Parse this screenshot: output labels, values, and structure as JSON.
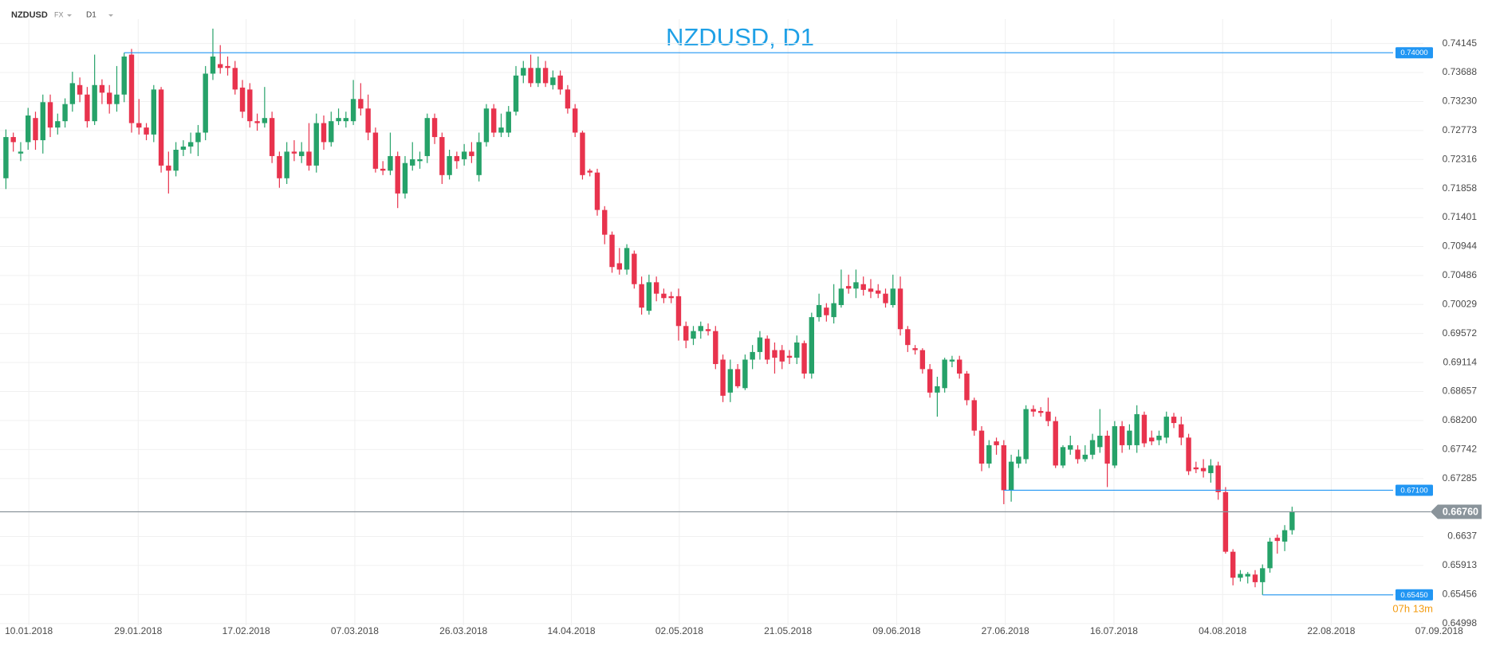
{
  "header": {
    "symbol": "NZDUSD",
    "market": "FX",
    "timeframe": "D1"
  },
  "chart_data": {
    "type": "candlestick",
    "title": "NZDUSD, D1",
    "up_color": "#26a269",
    "down_color": "#e8334d",
    "grid": true,
    "open": [
      0.7202,
      0.7267,
      0.7241,
      0.7259,
      0.7297,
      0.7262,
      0.7322,
      0.7282,
      0.7292,
      0.7319,
      0.7349,
      0.7334,
      0.7292,
      0.7349,
      0.7337,
      0.7319,
      0.7334,
      0.7397,
      0.7289,
      0.7282,
      0.7271,
      0.7342,
      0.7222,
      0.7214,
      0.7247,
      0.7252,
      0.7259,
      0.7274,
      0.7367,
      0.7382,
      0.7379,
      0.7376,
      0.7345,
      0.7342,
      0.7292,
      0.7289,
      0.7297,
      0.7237,
      0.7202,
      0.7244,
      0.7237,
      0.7244,
      0.7222,
      0.7289,
      0.7259,
      0.7292,
      0.7292,
      0.7292,
      0.7327,
      0.7312,
      0.7274,
      0.7217,
      0.7214,
      0.7237,
      0.7178,
      0.7222,
      0.7229,
      0.7237,
      0.7297,
      0.7267,
      0.7207,
      0.7237,
      0.7232,
      0.7244,
      0.7207,
      0.7259,
      0.7312,
      0.7274,
      0.7274,
      0.7307,
      0.7364,
      0.7376,
      0.7352,
      0.7376,
      0.7349,
      0.7364,
      0.7342,
      0.7312,
      0.7274,
      0.7214,
      0.7211,
      0.7152,
      0.7113,
      0.7068,
      0.7058,
      0.7083,
      0.7035,
      0.6993,
      0.7038,
      0.702,
      0.7016,
      0.7016,
      0.6969,
      0.6949,
      0.6961,
      0.6964,
      0.6961,
      0.6916,
      0.6864,
      0.6901,
      0.6871,
      0.6916,
      0.6928,
      0.6949,
      0.6931,
      0.6931,
      0.6922,
      0.6919,
      0.6942,
      0.6894,
      0.6983,
      0.6998,
      0.6983,
      0.7002,
      0.7032,
      0.7028,
      0.7035,
      0.7028,
      0.7025,
      0.702,
      0.7002,
      0.7028,
      0.6964,
      0.6934,
      0.6931,
      0.6901,
      0.6864,
      0.6871,
      0.6913,
      0.6916,
      0.6894,
      0.6852,
      0.6804,
      0.6752,
      0.6787,
      0.6781,
      0.671,
      0.6752,
      0.6759,
      0.6838,
      0.6835,
      0.6834,
      0.6819,
      0.6749,
      0.6774,
      0.6774,
      0.6759,
      0.6766,
      0.6778,
      0.6796,
      0.6749,
      0.6811,
      0.6781,
      0.6781,
      0.6829,
      0.6793,
      0.6789,
      0.6793,
      0.6826,
      0.6814,
      0.6793,
      0.6746,
      0.6745,
      0.6737,
      0.6749,
      0.6707,
      0.6613,
      0.6572,
      0.6574,
      0.6577,
      0.6565,
      0.6587,
      0.6635,
      0.6629,
      0.6647
    ],
    "high": [
      0.7279,
      0.7274,
      0.7259,
      0.7313,
      0.7307,
      0.7334,
      0.7334,
      0.7304,
      0.7328,
      0.737,
      0.7361,
      0.7346,
      0.7397,
      0.7358,
      0.7349,
      0.7379,
      0.74,
      0.7406,
      0.7327,
      0.7289,
      0.7349,
      0.7346,
      0.7244,
      0.7259,
      0.7262,
      0.7274,
      0.7286,
      0.7379,
      0.7438,
      0.7412,
      0.7394,
      0.7387,
      0.7357,
      0.7352,
      0.7304,
      0.7346,
      0.7307,
      0.7244,
      0.7259,
      0.7262,
      0.7259,
      0.7289,
      0.7304,
      0.7301,
      0.7307,
      0.7312,
      0.7307,
      0.7357,
      0.7352,
      0.7334,
      0.7282,
      0.7229,
      0.7274,
      0.7244,
      0.7237,
      0.7259,
      0.7244,
      0.7304,
      0.7304,
      0.7274,
      0.7247,
      0.7244,
      0.7256,
      0.7259,
      0.7274,
      0.7319,
      0.7319,
      0.7304,
      0.7316,
      0.7379,
      0.7387,
      0.7397,
      0.7394,
      0.7387,
      0.7372,
      0.7372,
      0.7349,
      0.7319,
      0.7277,
      0.7217,
      0.7217,
      0.7158,
      0.7118,
      0.7092,
      0.7098,
      0.7088,
      0.7047,
      0.705,
      0.7047,
      0.7028,
      0.7023,
      0.7028,
      0.6976,
      0.6969,
      0.6976,
      0.6973,
      0.6969,
      0.6924,
      0.6916,
      0.6909,
      0.6924,
      0.6939,
      0.6961,
      0.6954,
      0.6943,
      0.6939,
      0.6931,
      0.6954,
      0.6946,
      0.699,
      0.702,
      0.7005,
      0.7035,
      0.7058,
      0.705,
      0.7058,
      0.7047,
      0.7043,
      0.7035,
      0.7028,
      0.705,
      0.7047,
      0.6969,
      0.6939,
      0.6934,
      0.6909,
      0.6889,
      0.6919,
      0.6922,
      0.6922,
      0.6898,
      0.6856,
      0.6811,
      0.6789,
      0.6793,
      0.6789,
      0.6766,
      0.6774,
      0.6844,
      0.6844,
      0.6841,
      0.6856,
      0.6826,
      0.6781,
      0.6796,
      0.6781,
      0.6781,
      0.6799,
      0.6838,
      0.6804,
      0.6819,
      0.6819,
      0.6814,
      0.6844,
      0.6834,
      0.6804,
      0.6804,
      0.6834,
      0.6832,
      0.6826,
      0.6799,
      0.6755,
      0.6759,
      0.6759,
      0.6755,
      0.6715,
      0.6617,
      0.6584,
      0.6581,
      0.6584,
      0.6593,
      0.6635,
      0.664,
      0.6655,
      0.6684
    ],
    "low": [
      0.7185,
      0.7244,
      0.7229,
      0.7247,
      0.7247,
      0.7241,
      0.7267,
      0.7271,
      0.7282,
      0.7307,
      0.7322,
      0.7282,
      0.7286,
      0.7319,
      0.7304,
      0.7307,
      0.7322,
      0.7274,
      0.7271,
      0.7262,
      0.7259,
      0.7211,
      0.7178,
      0.7205,
      0.7237,
      0.7241,
      0.7237,
      0.7262,
      0.7357,
      0.7367,
      0.7364,
      0.7334,
      0.7297,
      0.7282,
      0.7277,
      0.7282,
      0.7226,
      0.7187,
      0.7193,
      0.7229,
      0.7226,
      0.7214,
      0.7211,
      0.7247,
      0.7252,
      0.7286,
      0.7282,
      0.7286,
      0.7301,
      0.7262,
      0.7211,
      0.7207,
      0.7207,
      0.7155,
      0.717,
      0.7214,
      0.7217,
      0.7226,
      0.7256,
      0.7193,
      0.72,
      0.7217,
      0.7222,
      0.7226,
      0.7197,
      0.7252,
      0.7267,
      0.7267,
      0.7267,
      0.7301,
      0.7352,
      0.7346,
      0.7346,
      0.7346,
      0.7342,
      0.7334,
      0.7304,
      0.7267,
      0.72,
      0.7205,
      0.7143,
      0.7098,
      0.7053,
      0.705,
      0.705,
      0.7028,
      0.6987,
      0.6987,
      0.7008,
      0.7005,
      0.7005,
      0.6946,
      0.6934,
      0.6939,
      0.6949,
      0.6954,
      0.6901,
      0.6849,
      0.6849,
      0.6871,
      0.6868,
      0.6901,
      0.6916,
      0.6909,
      0.6894,
      0.6901,
      0.6909,
      0.6909,
      0.6886,
      0.6886,
      0.6976,
      0.6976,
      0.6973,
      0.6998,
      0.702,
      0.7013,
      0.7017,
      0.7013,
      0.7013,
      0.6998,
      0.6998,
      0.6954,
      0.6928,
      0.6924,
      0.6894,
      0.6856,
      0.6826,
      0.6864,
      0.6904,
      0.6886,
      0.6844,
      0.6796,
      0.674,
      0.6745,
      0.6766,
      0.6688,
      0.6692,
      0.6745,
      0.6752,
      0.6826,
      0.6826,
      0.6811,
      0.6745,
      0.6745,
      0.6766,
      0.6752,
      0.6755,
      0.6759,
      0.6769,
      0.6715,
      0.6745,
      0.6769,
      0.6774,
      0.6769,
      0.6778,
      0.6781,
      0.6781,
      0.6784,
      0.6808,
      0.6781,
      0.6734,
      0.6737,
      0.673,
      0.6722,
      0.6695,
      0.661,
      0.656,
      0.6566,
      0.6563,
      0.6557,
      0.6545,
      0.658,
      0.661,
      0.6614,
      0.664
    ],
    "close": [
      0.7267,
      0.7259,
      0.7244,
      0.7301,
      0.7262,
      0.7322,
      0.7282,
      0.7292,
      0.7319,
      0.7352,
      0.7334,
      0.7292,
      0.7349,
      0.7337,
      0.7319,
      0.7334,
      0.7394,
      0.7289,
      0.7282,
      0.7271,
      0.7342,
      0.7222,
      0.7214,
      0.7247,
      0.7252,
      0.7259,
      0.7274,
      0.7367,
      0.7394,
      0.7376,
      0.7376,
      0.7342,
      0.7307,
      0.7292,
      0.7289,
      0.7297,
      0.7237,
      0.7202,
      0.7244,
      0.7241,
      0.7244,
      0.7222,
      0.7289,
      0.7259,
      0.7292,
      0.7297,
      0.7297,
      0.7327,
      0.7312,
      0.7274,
      0.7217,
      0.7214,
      0.7237,
      0.7178,
      0.7226,
      0.7232,
      0.7232,
      0.7297,
      0.7267,
      0.7207,
      0.7237,
      0.7229,
      0.7244,
      0.7237,
      0.7259,
      0.7312,
      0.7274,
      0.7282,
      0.7307,
      0.7364,
      0.7376,
      0.7352,
      0.7376,
      0.7352,
      0.7361,
      0.7342,
      0.7312,
      0.7274,
      0.7207,
      0.7211,
      0.7152,
      0.7113,
      0.7062,
      0.7058,
      0.7092,
      0.7035,
      0.6998,
      0.7038,
      0.702,
      0.7013,
      0.7013,
      0.6969,
      0.6946,
      0.6961,
      0.6969,
      0.6961,
      0.6909,
      0.6859,
      0.6901,
      0.6874,
      0.6916,
      0.6928,
      0.6951,
      0.6916,
      0.6919,
      0.6913,
      0.6919,
      0.6943,
      0.6894,
      0.6983,
      0.7002,
      0.6986,
      0.7005,
      0.7028,
      0.7028,
      0.7038,
      0.7026,
      0.7023,
      0.702,
      0.7005,
      0.7028,
      0.6964,
      0.6939,
      0.6931,
      0.6901,
      0.6864,
      0.6874,
      0.6916,
      0.6916,
      0.6894,
      0.6852,
      0.6804,
      0.6752,
      0.6781,
      0.6781,
      0.671,
      0.6755,
      0.6763,
      0.6838,
      0.6834,
      0.6832,
      0.6819,
      0.6749,
      0.6778,
      0.6781,
      0.6759,
      0.6766,
      0.6789,
      0.6796,
      0.6752,
      0.6811,
      0.6781,
      0.6804,
      0.683,
      0.6784,
      0.6787,
      0.6796,
      0.6826,
      0.6816,
      0.6793,
      0.674,
      0.6743,
      0.674,
      0.6749,
      0.6707,
      0.6613,
      0.6572,
      0.6578,
      0.6578,
      0.6565,
      0.6587,
      0.6629,
      0.663,
      0.6647,
      0.6676
    ],
    "xlim": [
      -0.8,
      195
    ],
    "xticks": [
      {
        "value": 3.1,
        "label": "10.01.2018"
      },
      {
        "value": 17.9,
        "label": "29.01.2018"
      },
      {
        "value": 32.5,
        "label": "17.02.2018"
      },
      {
        "value": 47.2,
        "label": "07.03.2018"
      },
      {
        "value": 61.9,
        "label": "26.03.2018"
      },
      {
        "value": 76.5,
        "label": "14.04.2018"
      },
      {
        "value": 91.1,
        "label": "02.05.2018"
      },
      {
        "value": 105.8,
        "label": "21.05.2018"
      },
      {
        "value": 120.5,
        "label": "09.06.2018"
      },
      {
        "value": 135.2,
        "label": "27.06.2018"
      },
      {
        "value": 149.9,
        "label": "16.07.2018"
      },
      {
        "value": 164.6,
        "label": "04.08.2018"
      },
      {
        "value": 179.3,
        "label": "22.08.2018"
      },
      {
        "value": 193.9,
        "label": "07.09.2018"
      }
    ],
    "ylim": [
      0.6497,
      0.7453
    ],
    "yticks": [
      0.74145,
      0.73688,
      {
        "value": 0.7323,
        "label": "0.73230"
      },
      0.72773,
      0.72316,
      0.71858,
      0.71401,
      0.70944,
      0.70486,
      0.70029,
      0.69572,
      0.69114,
      0.68657,
      {
        "value": 0.682,
        "label": "0.68200"
      },
      0.67742,
      0.67285,
      0.6637,
      0.65913,
      0.65456,
      0.64998
    ],
    "levels": {
      "values": [
        0.74,
        0.671,
        0.6545
      ],
      "value_labels": [
        "0.74000",
        "0.67100",
        "0.65450"
      ],
      "color": "#2196f3"
    },
    "current": {
      "value": 0.6676,
      "label": "0.66760",
      "color": "#8a949b"
    },
    "countdown": "07h 13m"
  }
}
